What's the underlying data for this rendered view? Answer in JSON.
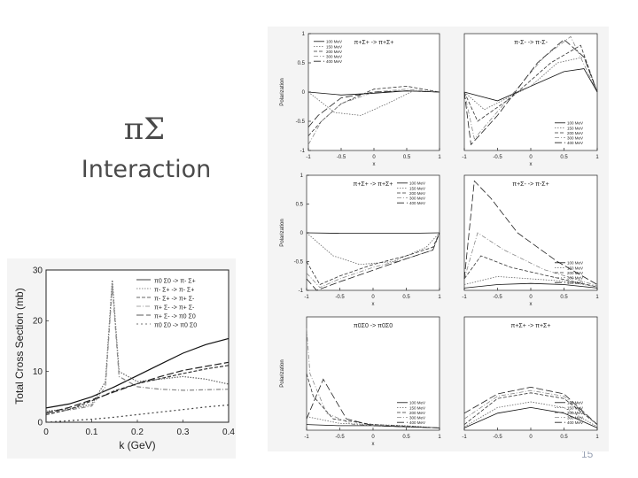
{
  "slide": {
    "title_symbol": "πΣ",
    "title_word": "Interaction",
    "page_number": "15"
  },
  "colors": {
    "title": "#4a4a4a",
    "ink": "#222222",
    "frame_bg": "#f4f4f4",
    "page_number": "#9aa3b5"
  },
  "chart_data": [
    {
      "type": "line",
      "title": "",
      "xlabel": "k (GeV)",
      "ylabel": "Total Cross Section (mb)",
      "xlim": [
        0,
        0.4
      ],
      "ylim": [
        0,
        30
      ],
      "xticks": [
        "0",
        "0.1",
        "0.2",
        "0.3",
        "0.4"
      ],
      "yticks": [
        "0",
        "10",
        "20",
        "30"
      ],
      "legend_position": "top-right",
      "series": [
        {
          "name": "π0 Σ0 -> π- Σ+",
          "x": [
            0,
            0.05,
            0.1,
            0.15,
            0.2,
            0.25,
            0.3,
            0.35,
            0.4
          ],
          "y": [
            2.8,
            3.6,
            5,
            7,
            9.2,
            11.4,
            13.6,
            15.3,
            16.5
          ]
        },
        {
          "name": "π- Σ+ -> π- Σ+",
          "x": [
            0,
            0.05,
            0.1,
            0.13,
            0.145,
            0.16,
            0.2,
            0.25,
            0.3,
            0.35,
            0.4
          ],
          "y": [
            2.2,
            2.6,
            3.5,
            8,
            28,
            10,
            8,
            8.5,
            9,
            8.5,
            7.5
          ]
        },
        {
          "name": "π- Σ+ -> π+ Σ-",
          "x": [
            0,
            0.05,
            0.1,
            0.15,
            0.2,
            0.25,
            0.3,
            0.35,
            0.4
          ],
          "y": [
            1.5,
            2.5,
            4.2,
            6.2,
            7.6,
            8.6,
            9.6,
            10.5,
            11.2
          ]
        },
        {
          "name": "π+ Σ- -> π+ Σ-",
          "x": [
            0,
            0.05,
            0.1,
            0.13,
            0.145,
            0.16,
            0.2,
            0.25,
            0.3,
            0.35,
            0.4
          ],
          "y": [
            2,
            2.4,
            3.2,
            7,
            27,
            9,
            7,
            6.5,
            6.3,
            6.4,
            6.5
          ]
        },
        {
          "name": "π+ Σ- -> π0 Σ0",
          "x": [
            0,
            0.05,
            0.1,
            0.15,
            0.2,
            0.25,
            0.3,
            0.35,
            0.4
          ],
          "y": [
            1.8,
            2.9,
            4.4,
            6,
            7.6,
            9,
            10.2,
            11,
            11.8
          ]
        },
        {
          "name": "π0 Σ0 -> π0 Σ0",
          "x": [
            0,
            0.05,
            0.1,
            0.15,
            0.2,
            0.25,
            0.3,
            0.35,
            0.4
          ],
          "y": [
            0,
            0.3,
            0.6,
            1,
            1.5,
            2,
            2.5,
            3,
            3.4
          ]
        }
      ]
    },
    {
      "type": "line",
      "title": "π+Σ+ -> π+Σ+",
      "xlabel": "x",
      "ylabel": "Polarization",
      "xlim": [
        -1,
        1
      ],
      "ylim": [
        -1,
        1
      ],
      "xticks": [
        "-1",
        "-0.5",
        "0",
        "0.5",
        "1"
      ],
      "yticks": [
        "-1",
        "-0.5",
        "0",
        "0.5",
        "1"
      ],
      "legend_position": "top-left",
      "series": [
        {
          "name": "100 MeV",
          "x": [
            -1,
            -0.5,
            0,
            0.5,
            1
          ],
          "y": [
            0,
            -0.05,
            -0.02,
            0.02,
            0
          ]
        },
        {
          "name": "150 MeV",
          "x": [
            -1,
            -0.6,
            -0.2,
            0.2,
            0.6,
            1
          ],
          "y": [
            0,
            -0.35,
            -0.4,
            -0.2,
            0.02,
            0
          ]
        },
        {
          "name": "200 MeV",
          "x": [
            -1,
            -0.8,
            -0.5,
            0,
            0.5,
            1
          ],
          "y": [
            -0.75,
            -0.5,
            -0.2,
            0.05,
            0.1,
            0
          ]
        },
        {
          "name": "300 MeV",
          "x": [
            -1,
            -0.8,
            -0.5,
            0,
            0.5,
            1
          ],
          "y": [
            -0.9,
            -0.5,
            -0.2,
            0,
            0.05,
            0
          ]
        },
        {
          "name": "400 MeV",
          "x": [
            -1,
            -0.85,
            -0.5,
            0,
            0.5,
            1
          ],
          "y": [
            -0.6,
            -0.4,
            -0.1,
            0,
            0.02,
            0
          ]
        }
      ]
    },
    {
      "type": "line",
      "title": "π-Σ- -> π-Σ-",
      "xlabel": "x",
      "ylabel": "",
      "xlim": [
        -1,
        1
      ],
      "ylim": [
        -1,
        1
      ],
      "xticks": [
        "-1",
        "-0.5",
        "0",
        "0.5",
        "1"
      ],
      "yticks": [],
      "legend_position": "bottom-right",
      "series": [
        {
          "name": "100 MeV",
          "x": [
            -1,
            -0.5,
            0,
            0.5,
            0.8,
            1
          ],
          "y": [
            0,
            -0.15,
            0.1,
            0.35,
            0.4,
            0
          ]
        },
        {
          "name": "150 MeV",
          "x": [
            -1,
            -0.7,
            0,
            0.4,
            0.8,
            1
          ],
          "y": [
            0,
            -0.3,
            0.1,
            0.5,
            0.6,
            0
          ]
        },
        {
          "name": "200 MeV",
          "x": [
            -1,
            -0.8,
            -0.3,
            0.3,
            0.75,
            1
          ],
          "y": [
            0,
            -0.5,
            -0.1,
            0.5,
            0.8,
            0
          ]
        },
        {
          "name": "300 MeV",
          "x": [
            -1,
            -0.85,
            -0.4,
            0.2,
            0.6,
            1
          ],
          "y": [
            0,
            -0.8,
            -0.2,
            0.6,
            0.95,
            0
          ]
        },
        {
          "name": "400 MeV",
          "x": [
            -1,
            -0.9,
            -0.5,
            0.1,
            0.5,
            0.8,
            1
          ],
          "y": [
            0,
            -0.9,
            -0.4,
            0.5,
            0.9,
            0.6,
            0
          ]
        }
      ]
    },
    {
      "type": "line",
      "title": "π+Σ+ -> π+Σ+",
      "xlabel": "x",
      "ylabel": "Polarization",
      "xlim": [
        -1,
        1
      ],
      "ylim": [
        -1,
        1
      ],
      "xticks": [
        "-1",
        "-0.5",
        "0",
        "0.5",
        "1"
      ],
      "yticks": [
        "-1",
        "-0.5",
        "0",
        "0.5",
        "1"
      ],
      "legend_position": "top-right",
      "series": [
        {
          "name": "100 MeV",
          "x": [
            -1,
            -0.5,
            0,
            0.5,
            1
          ],
          "y": [
            0,
            -0.01,
            -0.01,
            -0.01,
            0
          ]
        },
        {
          "name": "150 MeV",
          "x": [
            -1,
            -0.6,
            -0.2,
            0.3,
            0.8,
            1
          ],
          "y": [
            0,
            -0.4,
            -0.55,
            -0.5,
            -0.25,
            0
          ]
        },
        {
          "name": "200 MeV",
          "x": [
            -1,
            -0.8,
            -0.5,
            0,
            0.5,
            0.9,
            1
          ],
          "y": [
            -0.5,
            -0.9,
            -0.75,
            -0.55,
            -0.4,
            -0.25,
            0
          ]
        },
        {
          "name": "300 MeV",
          "x": [
            -1,
            -0.8,
            -0.5,
            0,
            0.5,
            0.9,
            1
          ],
          "y": [
            -0.7,
            -0.95,
            -0.8,
            -0.6,
            -0.45,
            -0.3,
            0
          ]
        },
        {
          "name": "400 MeV",
          "x": [
            -1,
            -0.85,
            -0.5,
            0,
            0.5,
            0.9,
            1
          ],
          "y": [
            -0.8,
            -1,
            -0.85,
            -0.65,
            -0.45,
            -0.3,
            0
          ]
        }
      ]
    },
    {
      "type": "line",
      "title": "π+Σ- -> π-Σ+",
      "xlabel": "x",
      "ylabel": "",
      "xlim": [
        -1,
        1
      ],
      "ylim": [
        0,
        1
      ],
      "xticks": [
        "-1",
        "-0.5",
        "0",
        "0.5",
        "1"
      ],
      "yticks": [],
      "legend_position": "bottom-right",
      "series": [
        {
          "name": "100 MeV",
          "x": [
            -1,
            -0.5,
            0,
            0.5,
            1
          ],
          "y": [
            0.02,
            0.05,
            0.06,
            0.05,
            0.02
          ]
        },
        {
          "name": "150 MeV",
          "x": [
            -1,
            -0.5,
            0,
            0.5,
            1
          ],
          "y": [
            0.05,
            0.12,
            0.1,
            0.08,
            0.03
          ]
        },
        {
          "name": "200 MeV",
          "x": [
            -1,
            -0.75,
            -0.3,
            0.3,
            1
          ],
          "y": [
            0.1,
            0.3,
            0.2,
            0.12,
            0.03
          ]
        },
        {
          "name": "300 MeV",
          "x": [
            -1,
            -0.8,
            -0.4,
            0.2,
            1
          ],
          "y": [
            0.1,
            0.5,
            0.35,
            0.18,
            0.04
          ]
        },
        {
          "name": "400 MeV",
          "x": [
            -1,
            -0.85,
            -0.6,
            -0.2,
            0.4,
            1
          ],
          "y": [
            0.1,
            0.95,
            0.8,
            0.5,
            0.25,
            0.05
          ]
        }
      ]
    },
    {
      "type": "line",
      "title": "π0Σ0 -> π0Σ0",
      "xlabel": "x",
      "ylabel": "Polarization",
      "xlim": [
        -1,
        1
      ],
      "ylim": [
        0,
        1
      ],
      "xticks": [
        "-1",
        "-0.5",
        "0",
        "0.5",
        "1"
      ],
      "yticks": [],
      "legend_position": "bottom-right",
      "series": [
        {
          "name": "100 MeV",
          "x": [
            -1,
            -0.5,
            0,
            0.5,
            1
          ],
          "y": [
            0.05,
            0.04,
            0.04,
            0.03,
            0.02
          ]
        },
        {
          "name": "150 MeV",
          "x": [
            -1,
            -0.5,
            0,
            0.5,
            1
          ],
          "y": [
            0.12,
            0.06,
            0.05,
            0.04,
            0.02
          ]
        },
        {
          "name": "200 MeV",
          "x": [
            -1,
            -0.9,
            -0.6,
            0,
            1
          ],
          "y": [
            0.5,
            0.3,
            0.1,
            0.05,
            0.02
          ]
        },
        {
          "name": "300 MeV",
          "x": [
            -1,
            -0.95,
            -0.7,
            -0.3,
            1
          ],
          "y": [
            0.9,
            0.5,
            0.15,
            0.05,
            0.02
          ]
        },
        {
          "name": "400 MeV",
          "x": [
            -1,
            -0.75,
            -0.6,
            -0.4,
            0,
            1
          ],
          "y": [
            0.1,
            0.45,
            0.3,
            0.1,
            0.04,
            0.02
          ]
        }
      ]
    },
    {
      "type": "line",
      "title": "π+Σ+ -> π+Σ+",
      "xlabel": "",
      "ylabel": "",
      "xlim": [
        -1,
        1
      ],
      "ylim": [
        0,
        1
      ],
      "xticks": [
        "-1",
        "-0.5",
        "0",
        "0.5",
        "1"
      ],
      "yticks": [],
      "legend_position": "bottom-right",
      "series": [
        {
          "name": "100 MeV",
          "x": [
            -1,
            -0.5,
            0,
            0.5,
            1
          ],
          "y": [
            0.02,
            0.15,
            0.2,
            0.15,
            0.02
          ]
        },
        {
          "name": "150 MeV",
          "x": [
            -1,
            -0.5,
            0,
            0.5,
            1
          ],
          "y": [
            0.03,
            0.2,
            0.25,
            0.2,
            0.03
          ]
        },
        {
          "name": "200 MeV",
          "x": [
            -1,
            -0.5,
            0,
            0.5,
            1
          ],
          "y": [
            0.05,
            0.28,
            0.33,
            0.28,
            0.05
          ]
        },
        {
          "name": "300 MeV",
          "x": [
            -1,
            -0.5,
            0,
            0.5,
            1
          ],
          "y": [
            0.1,
            0.3,
            0.35,
            0.3,
            0.05
          ]
        },
        {
          "name": "400 MeV",
          "x": [
            -1,
            -0.5,
            0,
            0.5,
            1
          ],
          "y": [
            0.15,
            0.32,
            0.38,
            0.32,
            0.05
          ]
        }
      ]
    }
  ]
}
